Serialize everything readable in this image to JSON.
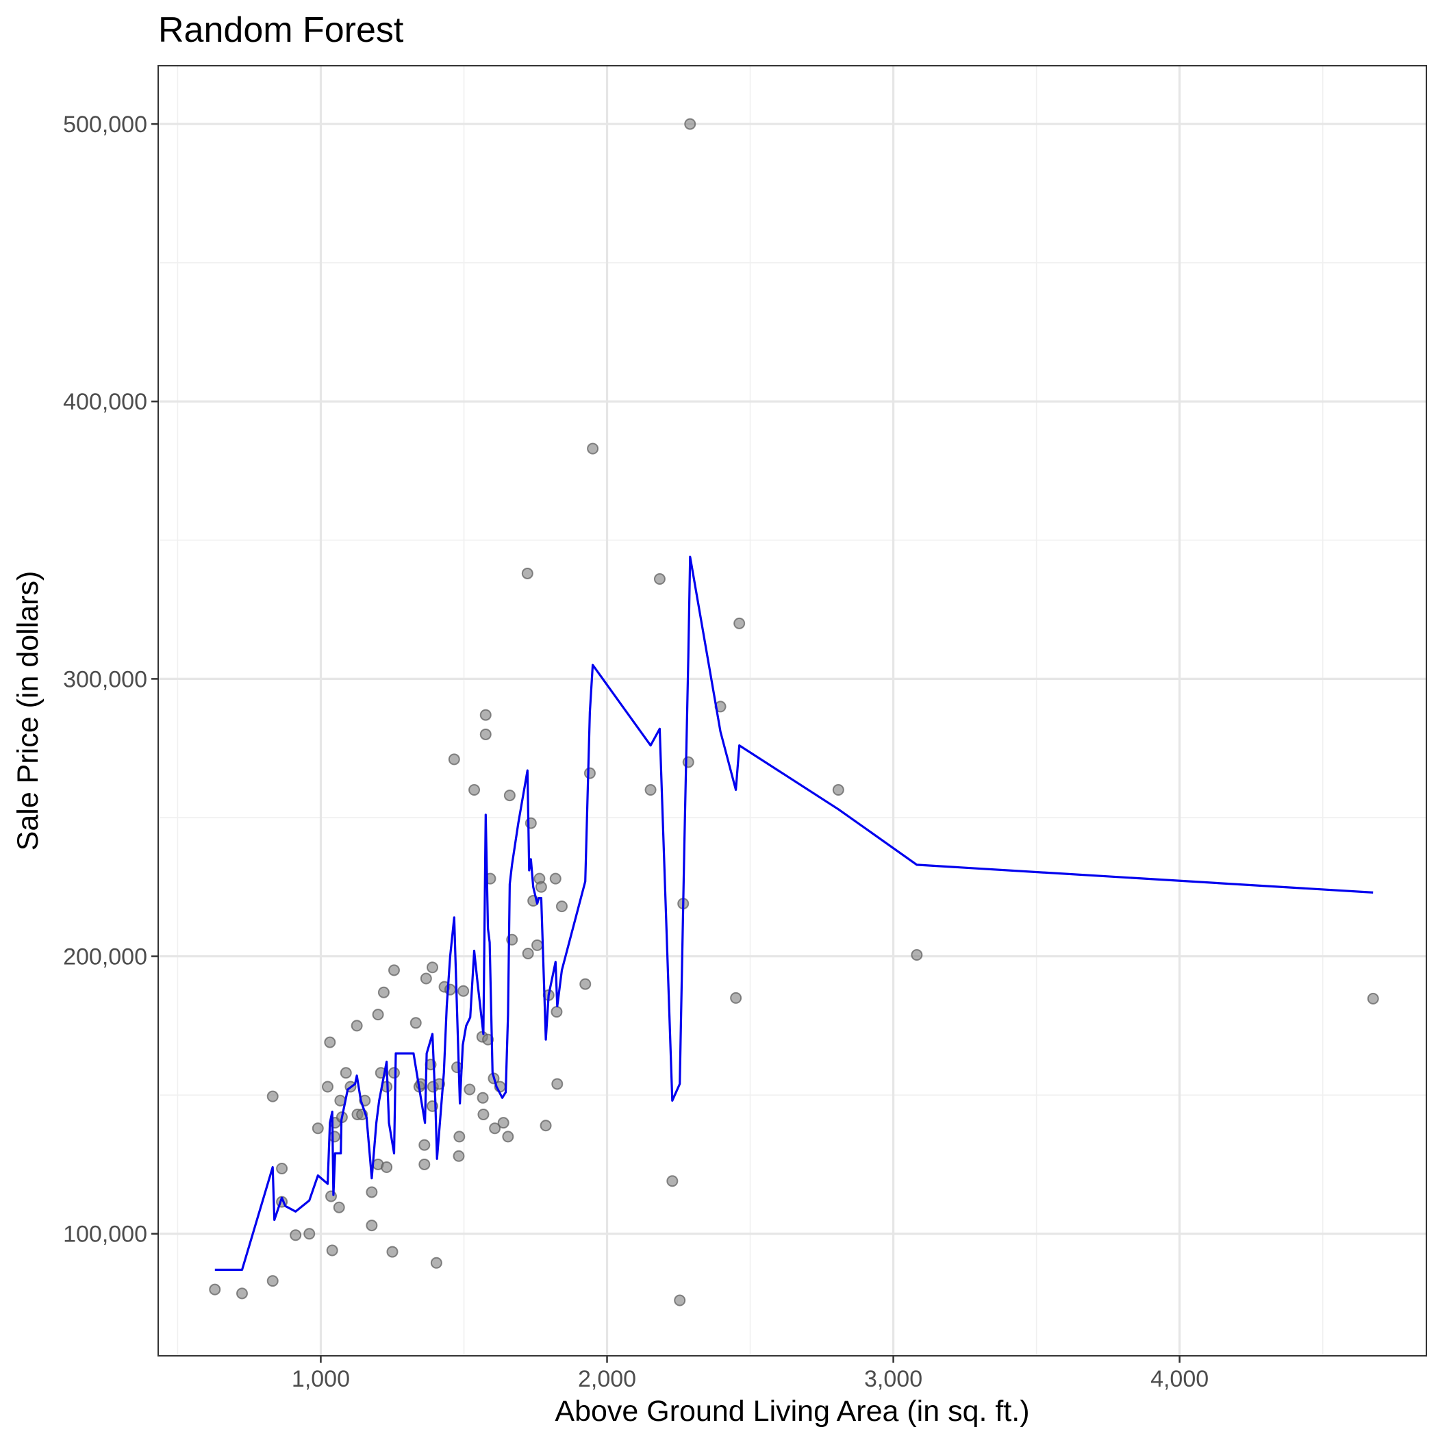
{
  "chart_data": {
    "type": "scatter",
    "title": "Random Forest",
    "xlabel": "Above Ground Living Area (in sq. ft.)",
    "ylabel": "Sale Price (in dollars)",
    "xlim": [
      432,
      4862
    ],
    "ylim": [
      56000,
      521000
    ],
    "x_ticks": [
      1000,
      2000,
      3000,
      4000
    ],
    "x_tick_labels": [
      "1,000",
      "2,000",
      "3,000",
      "4,000"
    ],
    "y_ticks": [
      100000,
      200000,
      300000,
      400000,
      500000
    ],
    "y_tick_labels": [
      "100,000",
      "200,000",
      "300,000",
      "400,000",
      "500,000"
    ],
    "grid": true,
    "colors": {
      "points": "#7f7f7f",
      "line": "#0000ee"
    },
    "points": [
      [
        630,
        79900
      ],
      [
        725,
        78500
      ],
      [
        832,
        83000
      ],
      [
        832,
        149500
      ],
      [
        864,
        123500
      ],
      [
        864,
        111500
      ],
      [
        912,
        99500
      ],
      [
        960,
        100000
      ],
      [
        990,
        138000
      ],
      [
        1024,
        153000
      ],
      [
        1032,
        169000
      ],
      [
        1036,
        113500
      ],
      [
        1040,
        94000
      ],
      [
        1048,
        135000
      ],
      [
        1050,
        140000
      ],
      [
        1064,
        109500
      ],
      [
        1068,
        148000
      ],
      [
        1074,
        142000
      ],
      [
        1088,
        158000
      ],
      [
        1104,
        153000
      ],
      [
        1126,
        175000
      ],
      [
        1128,
        143000
      ],
      [
        1144,
        143000
      ],
      [
        1154,
        148000
      ],
      [
        1178,
        115000
      ],
      [
        1178,
        103000
      ],
      [
        1200,
        179000
      ],
      [
        1200,
        125000
      ],
      [
        1210,
        158000
      ],
      [
        1220,
        187000
      ],
      [
        1230,
        124000
      ],
      [
        1230,
        153000
      ],
      [
        1250,
        93500
      ],
      [
        1256,
        195000
      ],
      [
        1256,
        158000
      ],
      [
        1332,
        176000
      ],
      [
        1344,
        153000
      ],
      [
        1350,
        154000
      ],
      [
        1362,
        132000
      ],
      [
        1362,
        125000
      ],
      [
        1368,
        192000
      ],
      [
        1384,
        161000
      ],
      [
        1390,
        196000
      ],
      [
        1390,
        146000
      ],
      [
        1392,
        153000
      ],
      [
        1404,
        89500
      ],
      [
        1414,
        154000
      ],
      [
        1432,
        189000
      ],
      [
        1452,
        188000
      ],
      [
        1466,
        271000
      ],
      [
        1476,
        160000
      ],
      [
        1482,
        128000
      ],
      [
        1484,
        135000
      ],
      [
        1498,
        187500
      ],
      [
        1520,
        152000
      ],
      [
        1536,
        260000
      ],
      [
        1564,
        171000
      ],
      [
        1566,
        149000
      ],
      [
        1568,
        143000
      ],
      [
        1576,
        287000
      ],
      [
        1576,
        280000
      ],
      [
        1584,
        170000
      ],
      [
        1592,
        228000
      ],
      [
        1604,
        156000
      ],
      [
        1608,
        138000
      ],
      [
        1626,
        153000
      ],
      [
        1638,
        140000
      ],
      [
        1654,
        135000
      ],
      [
        1660,
        258000
      ],
      [
        1668,
        206000
      ],
      [
        1722,
        338000
      ],
      [
        1724,
        201000
      ],
      [
        1734,
        248000
      ],
      [
        1742,
        220000
      ],
      [
        1756,
        204000
      ],
      [
        1764,
        228000
      ],
      [
        1770,
        225000
      ],
      [
        1786,
        139000
      ],
      [
        1796,
        186000
      ],
      [
        1820,
        228000
      ],
      [
        1824,
        180000
      ],
      [
        1826,
        154000
      ],
      [
        1842,
        218000
      ],
      [
        1924,
        190000
      ],
      [
        1940,
        266000
      ],
      [
        1950,
        383000
      ],
      [
        2152,
        260000
      ],
      [
        2184,
        336000
      ],
      [
        2228,
        119000
      ],
      [
        2254,
        76000
      ],
      [
        2266,
        219000
      ],
      [
        2284,
        270000
      ],
      [
        2290,
        500000
      ],
      [
        2396,
        290000
      ],
      [
        2450,
        185000
      ],
      [
        2462,
        320000
      ],
      [
        2808,
        260000
      ],
      [
        3082,
        200500
      ],
      [
        4676,
        184750
      ]
    ],
    "series": [
      {
        "values": [
          [
            630,
            87000
          ],
          [
            725,
            87000
          ],
          [
            832,
            124000
          ],
          [
            838,
            105000
          ],
          [
            864,
            113000
          ],
          [
            876,
            110000
          ],
          [
            912,
            108000
          ],
          [
            960,
            112000
          ],
          [
            990,
            121000
          ],
          [
            1024,
            118000
          ],
          [
            1032,
            140000
          ],
          [
            1040,
            144000
          ],
          [
            1044,
            114000
          ],
          [
            1050,
            129000
          ],
          [
            1070,
            129000
          ],
          [
            1072,
            141000
          ],
          [
            1094,
            152000
          ],
          [
            1120,
            154000
          ],
          [
            1126,
            157000
          ],
          [
            1140,
            148000
          ],
          [
            1160,
            142000
          ],
          [
            1178,
            120000
          ],
          [
            1194,
            140000
          ],
          [
            1204,
            148000
          ],
          [
            1230,
            162000
          ],
          [
            1238,
            140000
          ],
          [
            1256,
            129000
          ],
          [
            1262,
            165000
          ],
          [
            1324,
            165000
          ],
          [
            1364,
            140000
          ],
          [
            1370,
            165000
          ],
          [
            1390,
            172000
          ],
          [
            1400,
            148000
          ],
          [
            1406,
            127000
          ],
          [
            1416,
            140000
          ],
          [
            1430,
            158000
          ],
          [
            1440,
            182000
          ],
          [
            1452,
            200000
          ],
          [
            1466,
            214000
          ],
          [
            1476,
            180000
          ],
          [
            1486,
            147000
          ],
          [
            1496,
            168000
          ],
          [
            1508,
            175000
          ],
          [
            1522,
            178000
          ],
          [
            1536,
            202000
          ],
          [
            1548,
            190000
          ],
          [
            1568,
            172000
          ],
          [
            1576,
            251000
          ],
          [
            1584,
            210000
          ],
          [
            1590,
            205000
          ],
          [
            1600,
            158000
          ],
          [
            1614,
            153000
          ],
          [
            1634,
            149000
          ],
          [
            1646,
            151000
          ],
          [
            1654,
            179000
          ],
          [
            1660,
            226000
          ],
          [
            1668,
            233000
          ],
          [
            1690,
            248000
          ],
          [
            1722,
            267000
          ],
          [
            1728,
            231000
          ],
          [
            1734,
            235000
          ],
          [
            1742,
            225000
          ],
          [
            1756,
            219000
          ],
          [
            1762,
            221000
          ],
          [
            1770,
            221000
          ],
          [
            1786,
            170000
          ],
          [
            1796,
            186000
          ],
          [
            1820,
            198000
          ],
          [
            1826,
            182000
          ],
          [
            1842,
            195000
          ],
          [
            1924,
            227000
          ],
          [
            1940,
            288000
          ],
          [
            1950,
            305000
          ],
          [
            2152,
            276000
          ],
          [
            2184,
            282000
          ],
          [
            2228,
            148000
          ],
          [
            2254,
            154000
          ],
          [
            2270,
            240000
          ],
          [
            2284,
            308000
          ],
          [
            2290,
            344000
          ],
          [
            2396,
            281000
          ],
          [
            2450,
            260000
          ],
          [
            2462,
            276000
          ],
          [
            2808,
            253000
          ],
          [
            3082,
            233000
          ],
          [
            4676,
            223000
          ]
        ]
      }
    ]
  }
}
